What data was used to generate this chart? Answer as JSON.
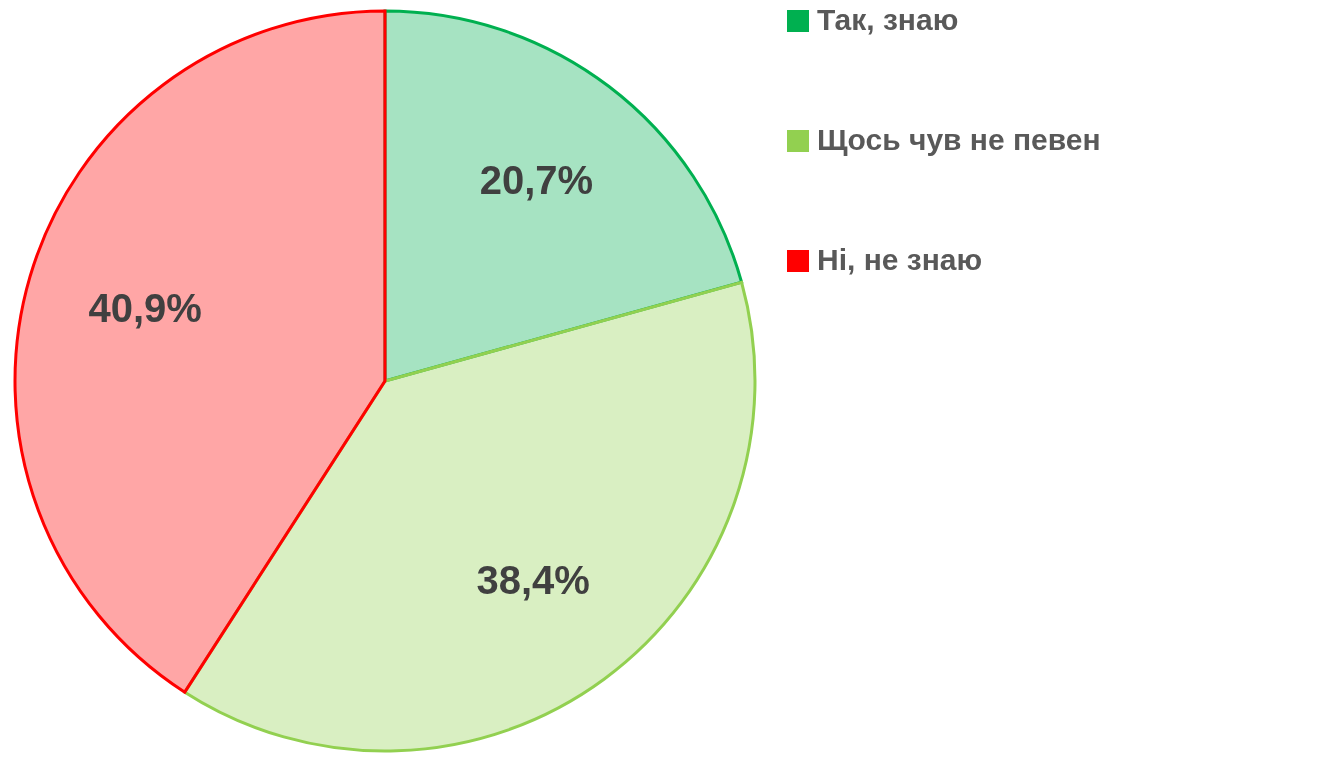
{
  "chart_data": {
    "type": "pie",
    "categories": [
      "Так, знаю",
      "Щось чув не певен",
      "Ні, не знаю"
    ],
    "values": [
      20.7,
      38.4,
      40.9
    ],
    "colors": [
      "#00b050",
      "#92d050",
      "#ff0000"
    ],
    "value_labels": [
      "20,7%",
      "38,4%",
      "40,9%"
    ],
    "legend": "right"
  }
}
